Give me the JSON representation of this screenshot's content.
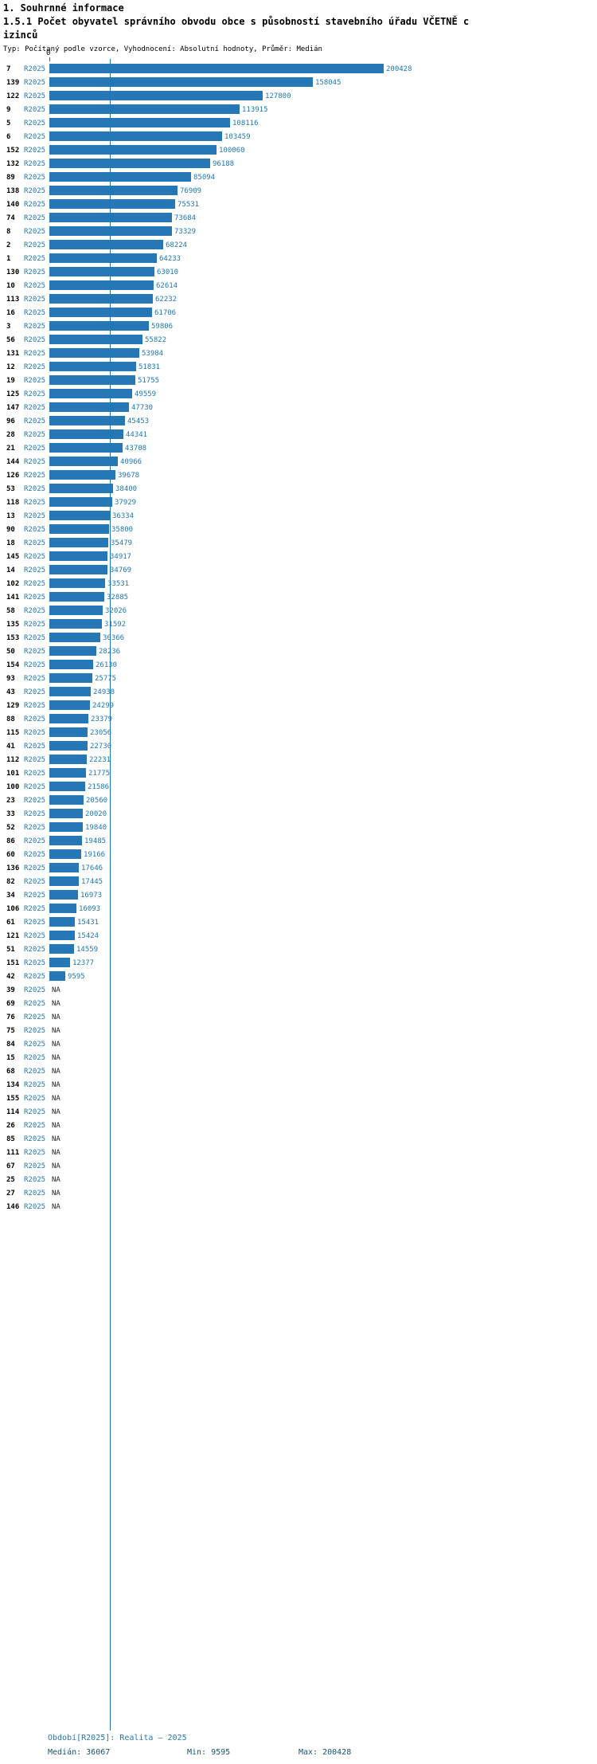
{
  "header": {
    "section_title": "1. Souhrnné informace",
    "chart_title_line1": "1.5.1 Počet obyvatel správního obvodu obce s působností stavebního úřadu VČETNĚ c",
    "chart_title_line2": "izinců",
    "subtitle": "Typ: Počítaný podle vzorce, Vyhodnocení: Absolutní hodnoty, Průměr: Medián"
  },
  "chart_data": {
    "type": "bar",
    "orientation": "horizontal",
    "title": "1.5.1 Počet obyvatel správního obvodu obce s působností stavebního úřadu VČETNĚ cizinců",
    "series_label": "R2025",
    "xlim": [
      0,
      200428
    ],
    "x_axis_ticks": [
      "0"
    ],
    "median_line_value": 36067,
    "legend_position": "none",
    "grid": false,
    "rows": [
      {
        "id": "7",
        "value": 200428,
        "value_label": "200428"
      },
      {
        "id": "139",
        "value": 158045,
        "value_label": "158045"
      },
      {
        "id": "122",
        "value": 127800,
        "value_label": "127800"
      },
      {
        "id": "9",
        "value": 113915,
        "value_label": "113915"
      },
      {
        "id": "5",
        "value": 108116,
        "value_label": "108116"
      },
      {
        "id": "6",
        "value": 103459,
        "value_label": "103459"
      },
      {
        "id": "152",
        "value": 100060,
        "value_label": "100060"
      },
      {
        "id": "132",
        "value": 96188,
        "value_label": "96188"
      },
      {
        "id": "89",
        "value": 85094,
        "value_label": "85094"
      },
      {
        "id": "138",
        "value": 76909,
        "value_label": "76909"
      },
      {
        "id": "140",
        "value": 75531,
        "value_label": "75531"
      },
      {
        "id": "74",
        "value": 73684,
        "value_label": "73684"
      },
      {
        "id": "8",
        "value": 73329,
        "value_label": "73329"
      },
      {
        "id": "2",
        "value": 68224,
        "value_label": "68224"
      },
      {
        "id": "1",
        "value": 64233,
        "value_label": "64233"
      },
      {
        "id": "130",
        "value": 63010,
        "value_label": "63010"
      },
      {
        "id": "10",
        "value": 62614,
        "value_label": "62614"
      },
      {
        "id": "113",
        "value": 62232,
        "value_label": "62232"
      },
      {
        "id": "16",
        "value": 61706,
        "value_label": "61706"
      },
      {
        "id": "3",
        "value": 59806,
        "value_label": "59806"
      },
      {
        "id": "56",
        "value": 55822,
        "value_label": "55822"
      },
      {
        "id": "131",
        "value": 53984,
        "value_label": "53984"
      },
      {
        "id": "12",
        "value": 51831,
        "value_label": "51831"
      },
      {
        "id": "19",
        "value": 51755,
        "value_label": "51755"
      },
      {
        "id": "125",
        "value": 49559,
        "value_label": "49559"
      },
      {
        "id": "147",
        "value": 47730,
        "value_label": "47730"
      },
      {
        "id": "96",
        "value": 45453,
        "value_label": "45453"
      },
      {
        "id": "28",
        "value": 44341,
        "value_label": "44341"
      },
      {
        "id": "21",
        "value": 43708,
        "value_label": "43708"
      },
      {
        "id": "144",
        "value": 40966,
        "value_label": "40966"
      },
      {
        "id": "126",
        "value": 39678,
        "value_label": "39678"
      },
      {
        "id": "53",
        "value": 38400,
        "value_label": "38400"
      },
      {
        "id": "118",
        "value": 37929,
        "value_label": "37929"
      },
      {
        "id": "13",
        "value": 36334,
        "value_label": "36334"
      },
      {
        "id": "90",
        "value": 35800,
        "value_label": "35800"
      },
      {
        "id": "18",
        "value": 35479,
        "value_label": "35479"
      },
      {
        "id": "145",
        "value": 34917,
        "value_label": "34917"
      },
      {
        "id": "14",
        "value": 34769,
        "value_label": "34769"
      },
      {
        "id": "102",
        "value": 33531,
        "value_label": "33531"
      },
      {
        "id": "141",
        "value": 32885,
        "value_label": "32885"
      },
      {
        "id": "58",
        "value": 32026,
        "value_label": "32026"
      },
      {
        "id": "135",
        "value": 31592,
        "value_label": "31592"
      },
      {
        "id": "153",
        "value": 30366,
        "value_label": "30366"
      },
      {
        "id": "50",
        "value": 28236,
        "value_label": "28236"
      },
      {
        "id": "154",
        "value": 26130,
        "value_label": "26130"
      },
      {
        "id": "93",
        "value": 25775,
        "value_label": "25775"
      },
      {
        "id": "43",
        "value": 24938,
        "value_label": "24938"
      },
      {
        "id": "129",
        "value": 24299,
        "value_label": "24299"
      },
      {
        "id": "88",
        "value": 23379,
        "value_label": "23379"
      },
      {
        "id": "115",
        "value": 23056,
        "value_label": "23056"
      },
      {
        "id": "41",
        "value": 22730,
        "value_label": "22730"
      },
      {
        "id": "112",
        "value": 22231,
        "value_label": "22231"
      },
      {
        "id": "101",
        "value": 21775,
        "value_label": "21775"
      },
      {
        "id": "100",
        "value": 21586,
        "value_label": "21586"
      },
      {
        "id": "23",
        "value": 20560,
        "value_label": "20560"
      },
      {
        "id": "33",
        "value": 20020,
        "value_label": "20020"
      },
      {
        "id": "52",
        "value": 19840,
        "value_label": "19840"
      },
      {
        "id": "86",
        "value": 19485,
        "value_label": "19485"
      },
      {
        "id": "60",
        "value": 19166,
        "value_label": "19166"
      },
      {
        "id": "136",
        "value": 17646,
        "value_label": "17646"
      },
      {
        "id": "82",
        "value": 17445,
        "value_label": "17445"
      },
      {
        "id": "34",
        "value": 16973,
        "value_label": "16973"
      },
      {
        "id": "106",
        "value": 16093,
        "value_label": "16093"
      },
      {
        "id": "61",
        "value": 15431,
        "value_label": "15431"
      },
      {
        "id": "121",
        "value": 15424,
        "value_label": "15424"
      },
      {
        "id": "51",
        "value": 14559,
        "value_label": "14559"
      },
      {
        "id": "151",
        "value": 12377,
        "value_label": "12377"
      },
      {
        "id": "42",
        "value": 9595,
        "value_label": "9595"
      },
      {
        "id": "39",
        "value": null,
        "value_label": "NA"
      },
      {
        "id": "69",
        "value": null,
        "value_label": "NA"
      },
      {
        "id": "76",
        "value": null,
        "value_label": "NA"
      },
      {
        "id": "75",
        "value": null,
        "value_label": "NA"
      },
      {
        "id": "84",
        "value": null,
        "value_label": "NA"
      },
      {
        "id": "15",
        "value": null,
        "value_label": "NA"
      },
      {
        "id": "68",
        "value": null,
        "value_label": "NA"
      },
      {
        "id": "134",
        "value": null,
        "value_label": "NA"
      },
      {
        "id": "155",
        "value": null,
        "value_label": "NA"
      },
      {
        "id": "114",
        "value": null,
        "value_label": "NA"
      },
      {
        "id": "26",
        "value": null,
        "value_label": "NA"
      },
      {
        "id": "85",
        "value": null,
        "value_label": "NA"
      },
      {
        "id": "111",
        "value": null,
        "value_label": "NA"
      },
      {
        "id": "67",
        "value": null,
        "value_label": "NA"
      },
      {
        "id": "25",
        "value": null,
        "value_label": "NA"
      },
      {
        "id": "27",
        "value": null,
        "value_label": "NA"
      },
      {
        "id": "146",
        "value": null,
        "value_label": "NA"
      }
    ]
  },
  "footer": {
    "period": "Období[R2025]: Realita — 2025",
    "median": "Medián: 36067",
    "min": "Min: 9595",
    "max": "Max: 200428"
  },
  "colors": {
    "bar": "#2578b5",
    "value_label": "#1f77b4",
    "series_label": "#1f77b4",
    "median_line": "#1f77b4",
    "footer_period": "#1f77b4",
    "footer_stats": "#17546e"
  }
}
